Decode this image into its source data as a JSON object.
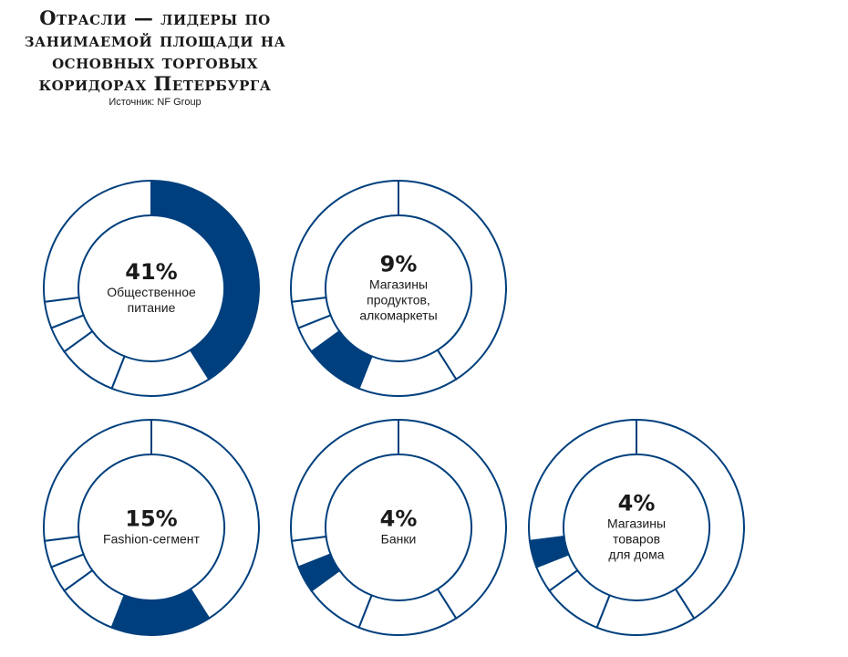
{
  "header": {
    "title": "Отрасли — лидеры по занимаемой площади на основных торговых коридорах Петербурга",
    "source": "Источник: NF Group"
  },
  "colors": {
    "accent": "#003f7d",
    "ring_stroke": "#003f7d",
    "background": "#ffffff"
  },
  "chart_data": {
    "type": "pie",
    "title": "Отрасли — лидеры по занимаемой площади на основных торговых коридорах Петербурга",
    "segment_order": [
      "Общественное питание",
      "Fashion-сегмент",
      "Магазины продуктов, алкомаркеты",
      "Банки",
      "Магазины товаров для дома"
    ],
    "charts": [
      {
        "value_label": "41%",
        "label_lines": [
          "Общественное",
          "питание"
        ],
        "highlight_index": 0
      },
      {
        "value_label": "9%",
        "label_lines": [
          "Магазины",
          "продуктов,",
          "алкомаркеты"
        ],
        "highlight_index": 2
      },
      {
        "value_label": "15%",
        "label_lines": [
          "Fashion-сегмент"
        ],
        "highlight_index": 1
      },
      {
        "value_label": "4%",
        "label_lines": [
          "Банки"
        ],
        "highlight_index": 3
      },
      {
        "value_label": "4%",
        "label_lines": [
          "Магазины",
          "товаров",
          "для дома"
        ],
        "highlight_index": 4
      }
    ],
    "segments_percent": [
      41,
      15,
      9,
      4,
      4,
      27
    ]
  }
}
